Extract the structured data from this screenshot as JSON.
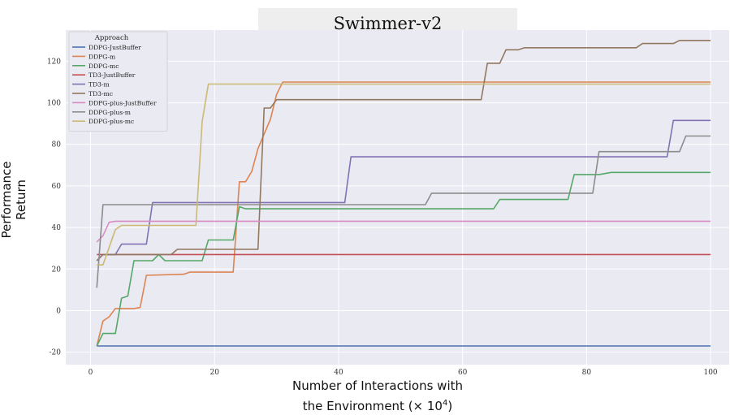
{
  "chart_data": {
    "type": "line",
    "title": "Swimmer-v2",
    "xlabel_line1": "Number of Interactions with",
    "xlabel_line2": "the Environment (× 10",
    "xlabel_exp": "4",
    "xlabel_close": ")",
    "ylabel": "Performance Return",
    "xlim": [
      -4,
      103
    ],
    "ylim": [
      -26,
      135
    ],
    "xticks": [
      0,
      20,
      40,
      60,
      80,
      100
    ],
    "yticks": [
      -20,
      0,
      20,
      40,
      60,
      80,
      100,
      120
    ],
    "grid": true,
    "legend": {
      "title": "Approach",
      "placement": "top-left"
    },
    "series": [
      {
        "name": "DDPG-JustBuffer",
        "color": "#4c72b0",
        "points": [
          [
            1,
            -17
          ],
          [
            100,
            -17
          ]
        ]
      },
      {
        "name": "DDPG-m",
        "color": "#dd8452",
        "points": [
          [
            1,
            -17
          ],
          [
            2,
            -5
          ],
          [
            3,
            -3
          ],
          [
            4,
            1
          ],
          [
            7,
            1
          ],
          [
            8,
            1.5
          ],
          [
            9,
            17
          ],
          [
            15,
            17.5
          ],
          [
            16,
            18.5
          ],
          [
            23,
            18.5
          ],
          [
            24,
            62
          ],
          [
            25,
            62
          ],
          [
            26,
            67
          ],
          [
            27,
            78
          ],
          [
            28,
            85
          ],
          [
            29,
            92
          ],
          [
            30,
            104
          ],
          [
            31,
            110
          ],
          [
            100,
            110
          ]
        ]
      },
      {
        "name": "DDPG-mc",
        "color": "#55a868",
        "points": [
          [
            1,
            -17
          ],
          [
            2,
            -11
          ],
          [
            4,
            -11
          ],
          [
            5,
            6
          ],
          [
            6,
            7
          ],
          [
            7,
            24
          ],
          [
            10,
            24
          ],
          [
            11,
            27
          ],
          [
            12,
            24
          ],
          [
            18,
            24
          ],
          [
            19,
            34
          ],
          [
            23,
            34
          ],
          [
            24,
            50
          ],
          [
            25,
            49
          ],
          [
            55,
            49
          ],
          [
            65,
            49
          ],
          [
            66,
            53.5
          ],
          [
            77,
            53.5
          ],
          [
            78,
            65.5
          ],
          [
            82,
            65.5
          ],
          [
            84,
            66.5
          ],
          [
            100,
            66.5
          ]
        ]
      },
      {
        "name": "TD3-JustBuffer",
        "color": "#c44e52",
        "points": [
          [
            1,
            27
          ],
          [
            100,
            27
          ]
        ]
      },
      {
        "name": "TD3-m",
        "color": "#8172b3",
        "points": [
          [
            1,
            24
          ],
          [
            2,
            27
          ],
          [
            4,
            27
          ],
          [
            5,
            32
          ],
          [
            9,
            32
          ],
          [
            10,
            52
          ],
          [
            41,
            52
          ],
          [
            42,
            74
          ],
          [
            93,
            74
          ],
          [
            94,
            91.5
          ],
          [
            100,
            91.5
          ]
        ]
      },
      {
        "name": "TD3-mc",
        "color": "#937860",
        "points": [
          [
            1,
            24
          ],
          [
            2,
            27
          ],
          [
            13,
            27
          ],
          [
            14,
            29.5
          ],
          [
            27,
            29.5
          ],
          [
            28,
            97.5
          ],
          [
            29,
            97.5
          ],
          [
            30,
            101.5
          ],
          [
            63,
            101.5
          ],
          [
            64,
            119
          ],
          [
            66,
            119
          ],
          [
            67,
            125.5
          ],
          [
            69,
            125.5
          ],
          [
            70,
            126.5
          ],
          [
            88,
            126.5
          ],
          [
            89,
            128.5
          ],
          [
            94,
            128.5
          ],
          [
            95,
            130
          ],
          [
            100,
            130
          ]
        ]
      },
      {
        "name": "DDPG-plus-JustBuffer",
        "color": "#da8bc3",
        "points": [
          [
            1,
            33
          ],
          [
            2,
            36
          ],
          [
            3,
            42.5
          ],
          [
            4,
            43
          ],
          [
            100,
            43
          ]
        ]
      },
      {
        "name": "DDPG-plus-m",
        "color": "#8c8c8c",
        "points": [
          [
            1,
            11
          ],
          [
            2,
            51
          ],
          [
            54,
            51
          ],
          [
            55,
            56.5
          ],
          [
            81,
            56.5
          ],
          [
            82,
            76.5
          ],
          [
            95,
            76.5
          ],
          [
            96,
            84
          ],
          [
            100,
            84
          ]
        ]
      },
      {
        "name": "DDPG-plus-mc",
        "color": "#ccb974",
        "points": [
          [
            1,
            22
          ],
          [
            2,
            22
          ],
          [
            4,
            39
          ],
          [
            5,
            41
          ],
          [
            17,
            41
          ],
          [
            18,
            91
          ],
          [
            19,
            109
          ],
          [
            100,
            109
          ]
        ]
      }
    ]
  }
}
